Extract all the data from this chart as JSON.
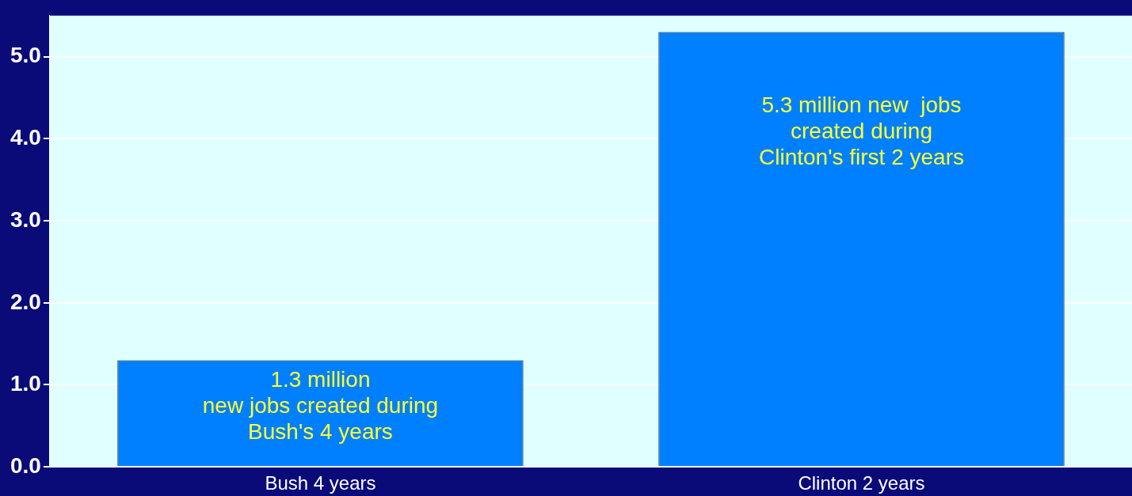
{
  "chart_data": {
    "type": "bar",
    "categories": [
      "Bush 4 years",
      "Clinton 2 years"
    ],
    "values": [
      1.3,
      5.3
    ],
    "color": "#0080ff",
    "ylim": [
      0,
      5.5
    ],
    "yticks": [
      {
        "value": 0,
        "label": "0.0"
      },
      {
        "value": 1,
        "label": "1.0"
      },
      {
        "value": 2,
        "label": "2.0"
      },
      {
        "value": 3,
        "label": "3.0"
      },
      {
        "value": 4,
        "label": "4.0"
      },
      {
        "value": 5,
        "label": "5.0"
      }
    ],
    "grid": "y",
    "annotations": [
      "1.3 million\nnew jobs created during\nBush's 4 years",
      "5.3 million new  jobs\ncreated during\nClinton's first 2 years"
    ]
  }
}
